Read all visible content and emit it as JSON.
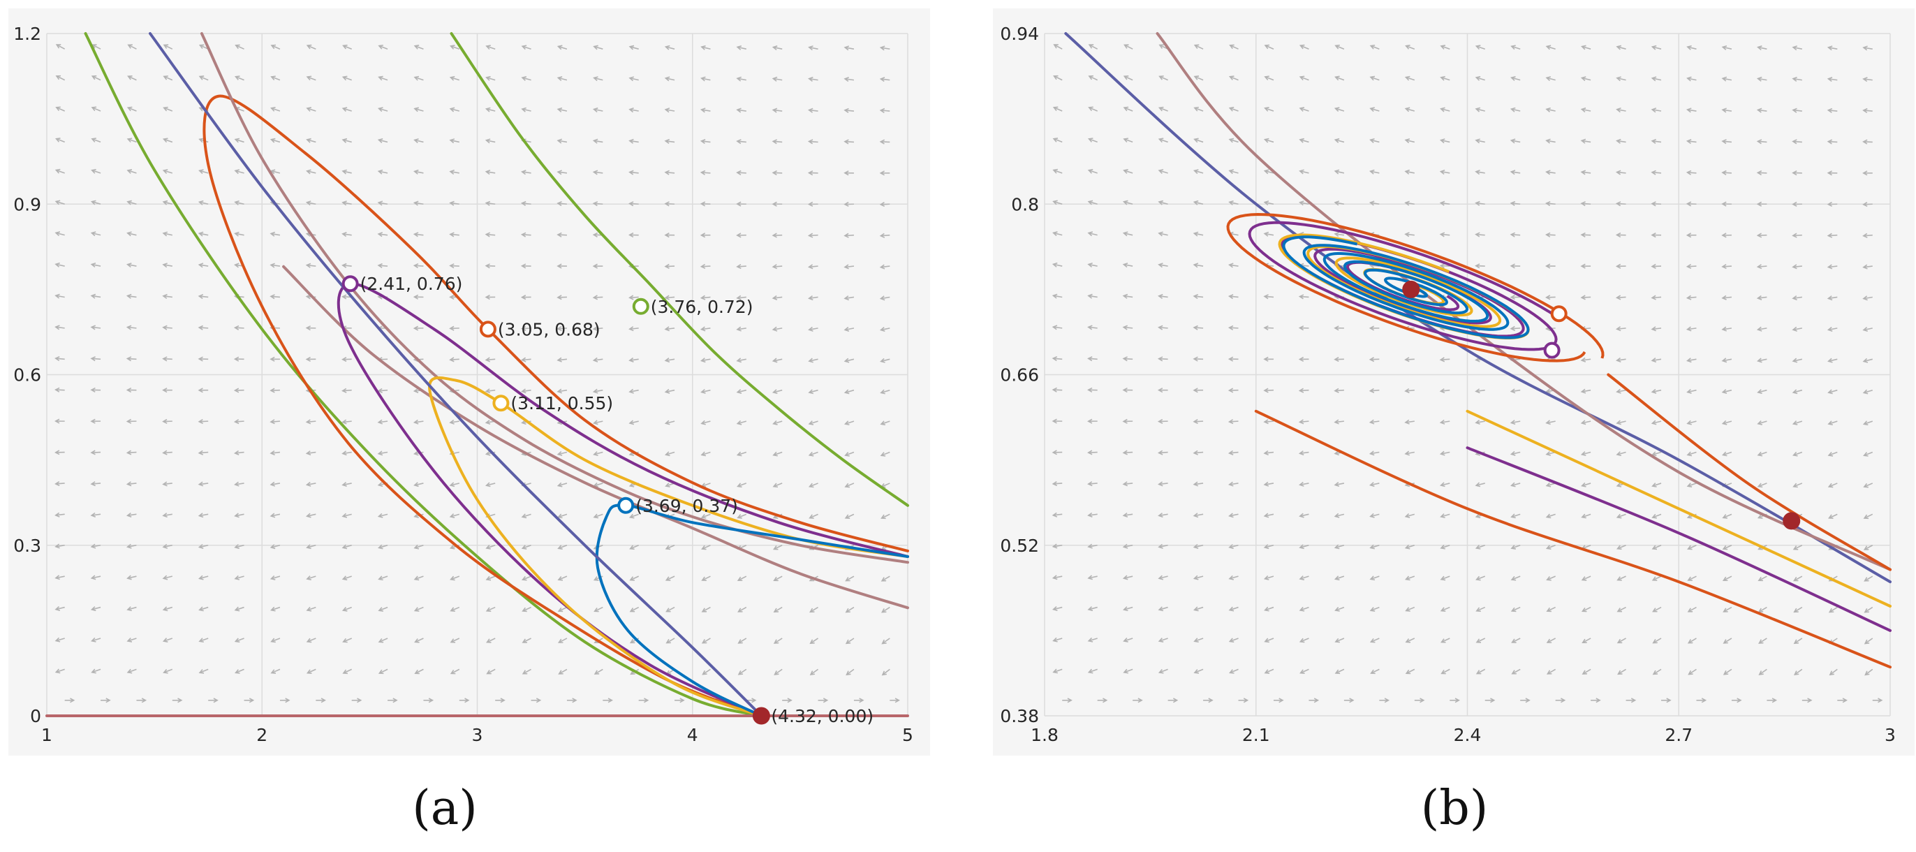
{
  "chart_data": [
    {
      "panel": "a",
      "type": "line",
      "caption": "(a)",
      "xlim": [
        1,
        5
      ],
      "ylim": [
        0,
        1.2
      ],
      "xticks": [
        1,
        2,
        3,
        4,
        5
      ],
      "xtick_labels": [
        "1",
        "2",
        "3",
        "4",
        "5"
      ],
      "yticks": [
        0,
        0.3,
        0.6,
        0.9,
        1.2
      ],
      "ytick_labels": [
        "0",
        "0.3",
        "0.6",
        "0.9",
        "1.2"
      ],
      "grid": true,
      "vector_field": true,
      "series": [
        {
          "name": "green-upper",
          "color": "#77ac30",
          "x": [
            2.88,
            3.2,
            3.5,
            3.8,
            4.1,
            4.4,
            4.7,
            5.0
          ],
          "y": [
            1.2,
            1.02,
            0.88,
            0.76,
            0.64,
            0.54,
            0.45,
            0.37
          ]
        },
        {
          "name": "green-lower",
          "color": "#77ac30",
          "x": [
            1.18,
            1.5,
            2.0,
            2.5,
            3.0,
            3.5,
            4.0,
            4.32
          ],
          "y": [
            1.2,
            0.96,
            0.68,
            0.46,
            0.28,
            0.13,
            0.03,
            0.0
          ]
        },
        {
          "name": "red-orbit",
          "color": "#d95319",
          "x": [
            4.32,
            3.9,
            3.4,
            2.9,
            2.4,
            2.0,
            1.75,
            1.8,
            2.2,
            2.7,
            3.05,
            3.5,
            4.0,
            4.5,
            5.0
          ],
          "y": [
            0.0,
            0.06,
            0.17,
            0.3,
            0.48,
            0.72,
            0.97,
            1.09,
            0.99,
            0.82,
            0.68,
            0.52,
            0.41,
            0.34,
            0.29
          ]
        },
        {
          "name": "mauve-upper",
          "color": "#b07f80",
          "x": [
            1.72,
            2.0,
            2.4,
            2.8,
            3.2,
            3.6,
            4.0,
            4.5,
            5.0
          ],
          "y": [
            1.2,
            0.98,
            0.76,
            0.6,
            0.49,
            0.41,
            0.35,
            0.3,
            0.27
          ]
        },
        {
          "name": "mauve-lower",
          "color": "#b07f80",
          "x": [
            2.1,
            2.5,
            3.0,
            3.5,
            4.0,
            4.5,
            5.0
          ],
          "y": [
            0.79,
            0.64,
            0.51,
            0.41,
            0.33,
            0.25,
            0.19
          ]
        },
        {
          "name": "purple-orbit",
          "color": "#7e2f8e",
          "x": [
            4.32,
            3.8,
            3.3,
            2.8,
            2.4,
            2.41,
            2.8,
            3.3,
            3.8,
            4.4,
            5.0
          ],
          "y": [
            0.0,
            0.09,
            0.23,
            0.43,
            0.66,
            0.76,
            0.68,
            0.54,
            0.43,
            0.34,
            0.28
          ]
        },
        {
          "name": "yellow-orbit",
          "color": "#edb120",
          "x": [
            4.32,
            3.9,
            3.4,
            3.0,
            2.78,
            2.9,
            3.11,
            3.5,
            4.0,
            4.5,
            5.0
          ],
          "y": [
            0.0,
            0.06,
            0.2,
            0.38,
            0.57,
            0.59,
            0.55,
            0.45,
            0.37,
            0.31,
            0.28
          ]
        },
        {
          "name": "blue-orbit",
          "color": "#0072bd",
          "x": [
            4.32,
            4.0,
            3.7,
            3.56,
            3.6,
            3.69,
            4.0,
            4.5,
            5.0
          ],
          "y": [
            0.0,
            0.06,
            0.15,
            0.26,
            0.35,
            0.37,
            0.34,
            0.31,
            0.28
          ]
        },
        {
          "name": "slate-nullcline",
          "color": "#5b5ea6",
          "x": [
            1.48,
            2.0,
            2.5,
            3.0,
            3.5,
            4.0,
            4.32
          ],
          "y": [
            1.2,
            0.93,
            0.7,
            0.49,
            0.3,
            0.12,
            0.0
          ]
        },
        {
          "name": "x-axis-nullcline",
          "color": "#b8666a",
          "x": [
            1.0,
            5.0
          ],
          "y": [
            0.0,
            0.0
          ]
        }
      ],
      "markers": [
        {
          "x": 2.41,
          "y": 0.76,
          "color": "#7e2f8e",
          "filled": false,
          "label": "(2.41, 0.76)"
        },
        {
          "x": 3.05,
          "y": 0.68,
          "color": "#d95319",
          "filled": false,
          "label": "(3.05, 0.68)"
        },
        {
          "x": 3.76,
          "y": 0.72,
          "color": "#77ac30",
          "filled": false,
          "label": "(3.76, 0.72)"
        },
        {
          "x": 3.11,
          "y": 0.55,
          "color": "#edb120",
          "filled": false,
          "label": "(3.11, 0.55)"
        },
        {
          "x": 3.69,
          "y": 0.37,
          "color": "#0072bd",
          "filled": false,
          "label": "(3.69, 0.37)"
        },
        {
          "x": 4.32,
          "y": 0.0,
          "color": "#a2272a",
          "filled": true,
          "label": "(4.32, 0.00)"
        }
      ]
    },
    {
      "panel": "b",
      "type": "line",
      "caption": "(b)",
      "xlim": [
        1.8,
        3.0
      ],
      "ylim": [
        0.38,
        0.94
      ],
      "xticks": [
        1.8,
        2.1,
        2.4,
        2.7,
        3.0
      ],
      "xtick_labels": [
        "1.8",
        "2.1",
        "2.4",
        "2.7",
        "3"
      ],
      "yticks": [
        0.38,
        0.52,
        0.66,
        0.8,
        0.94
      ],
      "ytick_labels": [
        "0.38",
        "0.52",
        "0.66",
        "0.8",
        "0.94"
      ],
      "grid": true,
      "vector_field": true,
      "spirals": [
        {
          "name": "red-spiral",
          "color": "#d95319",
          "center": [
            2.32,
            0.73
          ],
          "turns": 1,
          "r_start": 0.22,
          "r_end": 0.2
        },
        {
          "name": "purple-spiral",
          "color": "#7e2f8e",
          "center": [
            2.32,
            0.73
          ],
          "turns": 4,
          "r_start": 0.2,
          "r_end": 0.05
        },
        {
          "name": "yellow-spiral",
          "color": "#edb120",
          "center": [
            2.32,
            0.73
          ],
          "turns": 4,
          "r_start": 0.16,
          "r_end": 0.03
        },
        {
          "name": "blue-spiral",
          "color": "#0072bd",
          "center": [
            2.32,
            0.73
          ],
          "turns": 6,
          "r_start": 0.15,
          "r_end": 0.01
        }
      ],
      "series": [
        {
          "name": "slate-nullcline",
          "color": "#5b5ea6",
          "x": [
            1.83,
            2.1,
            2.4,
            2.7,
            3.0
          ],
          "y": [
            0.94,
            0.8,
            0.68,
            0.59,
            0.49
          ]
        },
        {
          "name": "mauve-nullcline",
          "color": "#b07f80",
          "x": [
            1.96,
            2.1,
            2.4,
            2.7,
            3.0
          ],
          "y": [
            0.94,
            0.84,
            0.7,
            0.58,
            0.5
          ]
        },
        {
          "name": "red-tail-upper",
          "color": "#d95319",
          "x": [
            2.6,
            2.8,
            3.0
          ],
          "y": [
            0.66,
            0.57,
            0.5
          ]
        },
        {
          "name": "red-tail-lower",
          "color": "#d95319",
          "x": [
            2.1,
            2.4,
            2.7,
            3.0
          ],
          "y": [
            0.63,
            0.55,
            0.49,
            0.42
          ]
        },
        {
          "name": "purple-tail",
          "color": "#7e2f8e",
          "x": [
            2.4,
            2.7,
            3.0
          ],
          "y": [
            0.6,
            0.53,
            0.45
          ]
        },
        {
          "name": "yellow-tail",
          "color": "#edb120",
          "x": [
            2.4,
            2.7,
            3.0
          ],
          "y": [
            0.63,
            0.55,
            0.47
          ]
        }
      ],
      "markers": [
        {
          "x": 2.53,
          "y": 0.71,
          "color": "#d95319",
          "filled": false,
          "label": ""
        },
        {
          "x": 2.52,
          "y": 0.68,
          "color": "#7e2f8e",
          "filled": false,
          "label": ""
        },
        {
          "x": 2.32,
          "y": 0.73,
          "color": "#a2272a",
          "filled": true,
          "label": ""
        },
        {
          "x": 2.86,
          "y": 0.54,
          "color": "#a2272a",
          "filled": true,
          "label": ""
        }
      ]
    }
  ]
}
